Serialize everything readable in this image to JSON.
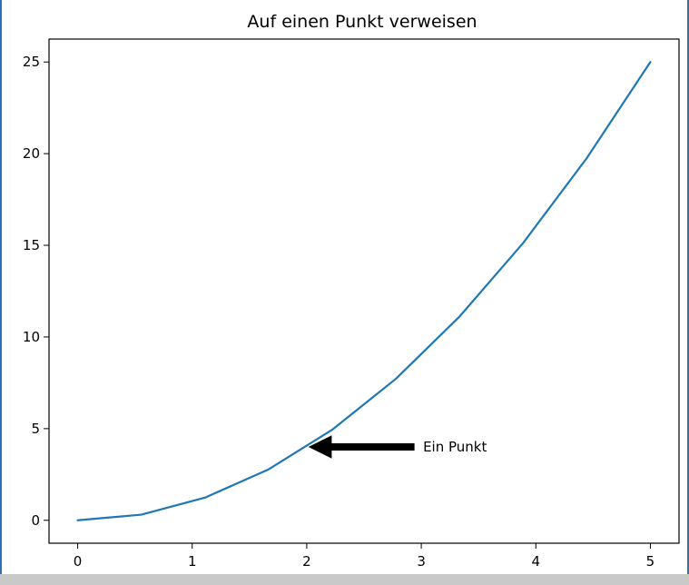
{
  "chart_data": {
    "type": "line",
    "title": "Auf einen Punkt verweisen",
    "xlabel": "",
    "ylabel": "",
    "xlim": [
      -0.25,
      5.25
    ],
    "ylim": [
      -1.25,
      26.25
    ],
    "xticks": [
      0,
      1,
      2,
      3,
      4,
      5
    ],
    "yticks": [
      0,
      5,
      10,
      15,
      20,
      25
    ],
    "grid": false,
    "series": [
      {
        "color": "#1f77b4",
        "x": [
          0,
          0.5556,
          1.1111,
          1.6667,
          2.2222,
          2.7778,
          3.3333,
          3.8889,
          4.4444,
          5
        ],
        "y": [
          0,
          0.3086,
          1.2346,
          2.7778,
          4.9383,
          7.716,
          11.1111,
          15.1235,
          19.7531,
          25
        ]
      }
    ],
    "annotations": [
      {
        "text": "Ein Punkt",
        "xy": [
          2,
          4
        ],
        "xytext": [
          3,
          4
        ],
        "arrow_color": "#000000"
      }
    ]
  }
}
